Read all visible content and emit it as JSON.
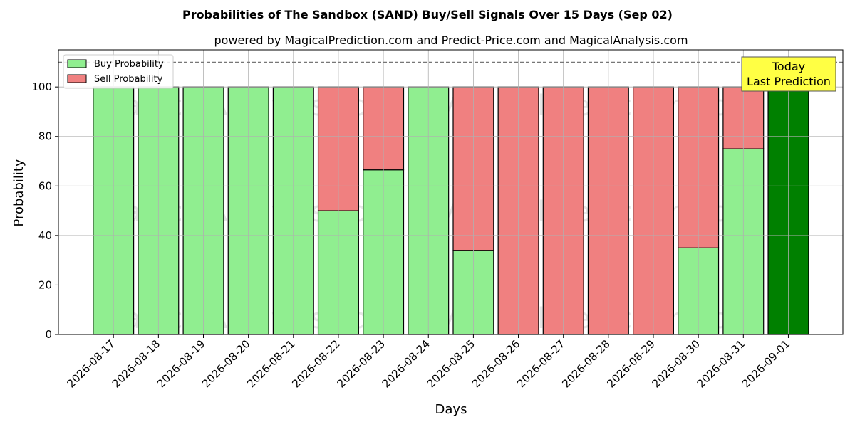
{
  "chart_data": {
    "type": "bar",
    "stacked": true,
    "title": "Probabilities of The Sandbox (SAND) Buy/Sell Signals Over 15 Days (Sep 02)",
    "subtitle": "powered by MagicalPrediction.com and Predict-Price.com and MagicalAnalysis.com",
    "xlabel": "Days",
    "ylabel": "Probability",
    "ylim": [
      0,
      115
    ],
    "yticks": [
      0,
      20,
      40,
      60,
      80,
      100
    ],
    "grid": true,
    "legend_placement": "top-left",
    "reference_line": 110,
    "categories": [
      "2026-08-17",
      "2026-08-18",
      "2026-08-19",
      "2026-08-20",
      "2026-08-21",
      "2026-08-22",
      "2026-08-23",
      "2026-08-24",
      "2026-08-25",
      "2026-08-26",
      "2026-08-27",
      "2026-08-28",
      "2026-08-29",
      "2026-08-30",
      "2026-08-31",
      "2026-09-01"
    ],
    "series": [
      {
        "name": "Buy Probability",
        "color": "#90ee90",
        "values": [
          100,
          100,
          100,
          100,
          100,
          50,
          66.5,
          100,
          34,
          0,
          0,
          0,
          0,
          35,
          75,
          100
        ]
      },
      {
        "name": "Sell Probability",
        "color": "#f08080",
        "values": [
          0,
          0,
          0,
          0,
          0,
          50,
          33.5,
          0,
          66,
          100,
          100,
          100,
          100,
          65,
          25,
          0
        ]
      }
    ],
    "today_index": 15,
    "today_color": "#008000",
    "annotation": {
      "line1": "Today",
      "line2": "Last Prediction",
      "box_color": "#ffff44"
    },
    "watermarks": [
      "MagicalAnalysis.com",
      "MagicalPrediction.com"
    ]
  }
}
